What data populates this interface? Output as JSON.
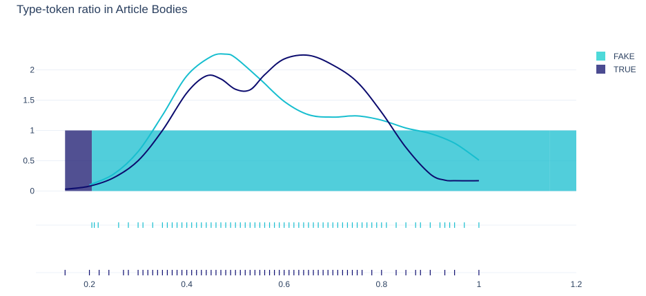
{
  "chart_data": {
    "type": "area",
    "title": "Type-token ratio in Article Bodies",
    "xlabel": "",
    "ylabel": "",
    "x_ticks": [
      0.2,
      0.4,
      0.6,
      0.8,
      1,
      1.2
    ],
    "y_ticks": [
      0,
      0.5,
      1,
      1.5,
      2
    ],
    "xlim": [
      0.1,
      1.2
    ],
    "ylim": [
      -0.2,
      2.5
    ],
    "grid": true,
    "legend_position": "top-right",
    "histogram": {
      "bins": [
        {
          "series": "TRUE",
          "x0": 0.15,
          "x1": 0.205,
          "value": 1
        },
        {
          "series": "FAKE",
          "x0": 0.205,
          "x1": 1.145,
          "value": 1
        },
        {
          "series": "FAKE",
          "x0": 1.145,
          "x1": 1.2,
          "value": 1
        }
      ]
    },
    "series": [
      {
        "name": "FAKE",
        "color": "#17becf",
        "density": {
          "x": [
            0.2,
            0.25,
            0.3,
            0.35,
            0.4,
            0.45,
            0.48,
            0.5,
            0.55,
            0.6,
            0.65,
            0.7,
            0.75,
            0.8,
            0.85,
            0.9,
            0.95,
            1.0
          ],
          "y": [
            0.1,
            0.28,
            0.65,
            1.25,
            1.9,
            2.22,
            2.26,
            2.2,
            1.85,
            1.48,
            1.26,
            1.22,
            1.24,
            1.17,
            1.04,
            0.95,
            0.79,
            0.51
          ]
        },
        "rug": [
          0.205,
          0.21,
          0.218,
          0.26,
          0.28,
          0.3,
          0.31,
          0.33,
          0.35,
          0.36,
          0.37,
          0.38,
          0.39,
          0.4,
          0.41,
          0.42,
          0.43,
          0.44,
          0.45,
          0.46,
          0.47,
          0.48,
          0.49,
          0.5,
          0.51,
          0.52,
          0.53,
          0.54,
          0.55,
          0.56,
          0.57,
          0.58,
          0.59,
          0.6,
          0.61,
          0.62,
          0.63,
          0.64,
          0.65,
          0.66,
          0.67,
          0.68,
          0.69,
          0.7,
          0.71,
          0.72,
          0.73,
          0.74,
          0.75,
          0.76,
          0.77,
          0.78,
          0.79,
          0.8,
          0.81,
          0.83,
          0.85,
          0.87,
          0.88,
          0.9,
          0.92,
          0.93,
          0.94,
          0.95,
          0.97,
          1.0
        ]
      },
      {
        "name": "TRUE",
        "color": "#0c0c6e",
        "density": {
          "x": [
            0.15,
            0.2,
            0.25,
            0.3,
            0.35,
            0.4,
            0.44,
            0.47,
            0.5,
            0.53,
            0.56,
            0.6,
            0.65,
            0.7,
            0.75,
            0.8,
            0.85,
            0.9,
            0.93,
            0.95,
            1.0
          ],
          "y": [
            0.03,
            0.08,
            0.22,
            0.5,
            1.0,
            1.62,
            1.9,
            1.85,
            1.68,
            1.67,
            1.92,
            2.18,
            2.24,
            2.08,
            1.8,
            1.3,
            0.72,
            0.28,
            0.18,
            0.17,
            0.17
          ]
        },
        "rug": [
          0.15,
          0.2,
          0.22,
          0.24,
          0.27,
          0.28,
          0.3,
          0.31,
          0.32,
          0.33,
          0.34,
          0.35,
          0.36,
          0.37,
          0.38,
          0.39,
          0.4,
          0.41,
          0.42,
          0.43,
          0.44,
          0.45,
          0.46,
          0.47,
          0.48,
          0.49,
          0.5,
          0.51,
          0.52,
          0.53,
          0.54,
          0.55,
          0.56,
          0.57,
          0.58,
          0.59,
          0.6,
          0.61,
          0.62,
          0.63,
          0.64,
          0.65,
          0.66,
          0.67,
          0.68,
          0.69,
          0.7,
          0.71,
          0.72,
          0.73,
          0.74,
          0.75,
          0.76,
          0.78,
          0.8,
          0.83,
          0.85,
          0.87,
          0.88,
          0.9,
          0.93,
          0.95,
          1.0
        ]
      }
    ],
    "legend": [
      {
        "name": "FAKE",
        "color": "#4ed9d9"
      },
      {
        "name": "TRUE",
        "color": "#4b4b91"
      }
    ]
  }
}
